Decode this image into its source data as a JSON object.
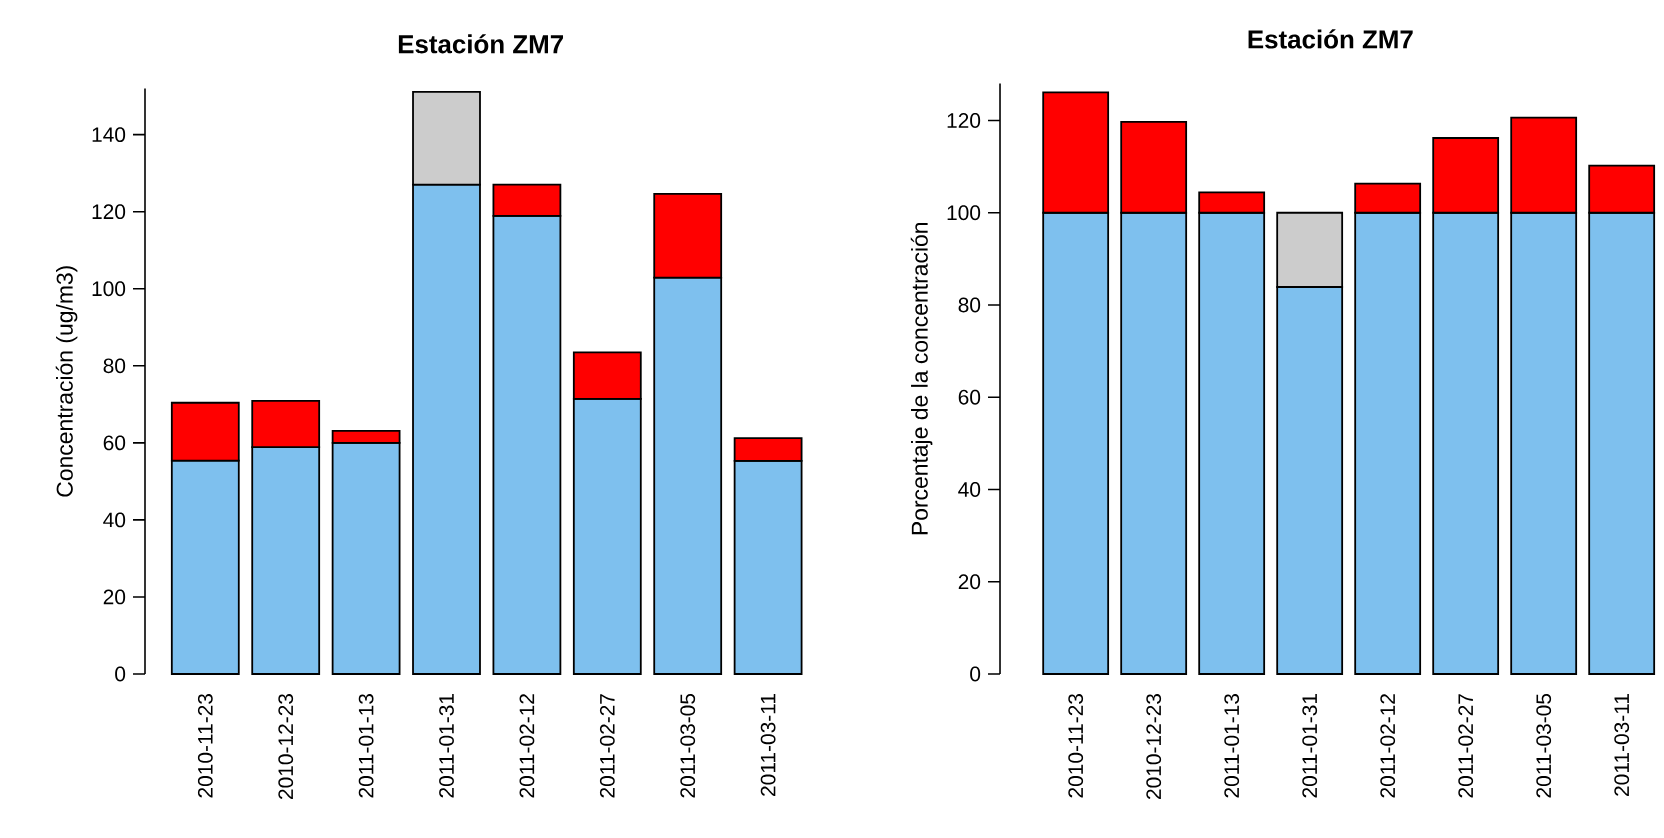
{
  "chart_data": [
    {
      "type": "bar",
      "title": "Estación ZM7",
      "ylabel": "Concentración (ug/m3)",
      "stacked": true,
      "categories": [
        "2010-11-23",
        "2010-12-23",
        "2011-01-13",
        "2011-01-31",
        "2011-02-12",
        "2011-02-27",
        "2011-03-05",
        "2011-03-11"
      ],
      "series": [
        {
          "color": "#7ec0ee",
          "values": [
            55.4,
            58.9,
            60.0,
            127.0,
            118.9,
            71.4,
            102.9,
            55.3
          ]
        },
        {
          "color": "#ff0000",
          "values": [
            15.0,
            12.0,
            3.1,
            null,
            8.1,
            12.1,
            21.7,
            5.9
          ]
        },
        {
          "color": "#cccccc",
          "values": [
            null,
            null,
            null,
            24.1,
            null,
            null,
            null,
            null
          ]
        }
      ],
      "ylim": [
        0,
        152
      ],
      "yticks": [
        0,
        20,
        40,
        60,
        80,
        100,
        120,
        140
      ]
    },
    {
      "type": "bar",
      "title": "Estación ZM7",
      "ylabel": "Porcentaje de la concentración",
      "stacked": true,
      "categories": [
        "2010-11-23",
        "2010-12-23",
        "2011-01-13",
        "2011-01-31",
        "2011-02-12",
        "2011-02-27",
        "2011-03-05",
        "2011-03-11"
      ],
      "series": [
        {
          "color": "#7ec0ee",
          "values": [
            100,
            100,
            100,
            83.9,
            100,
            100,
            100,
            100
          ]
        },
        {
          "color": "#ff0000",
          "values": [
            26.1,
            19.7,
            4.4,
            null,
            6.3,
            16.2,
            20.6,
            10.2
          ]
        },
        {
          "color": "#cccccc",
          "values": [
            null,
            null,
            null,
            16.1,
            null,
            null,
            null,
            null
          ]
        }
      ],
      "ylim": [
        0,
        128
      ],
      "yticks": [
        0,
        20,
        40,
        60,
        80,
        100,
        120
      ]
    }
  ]
}
